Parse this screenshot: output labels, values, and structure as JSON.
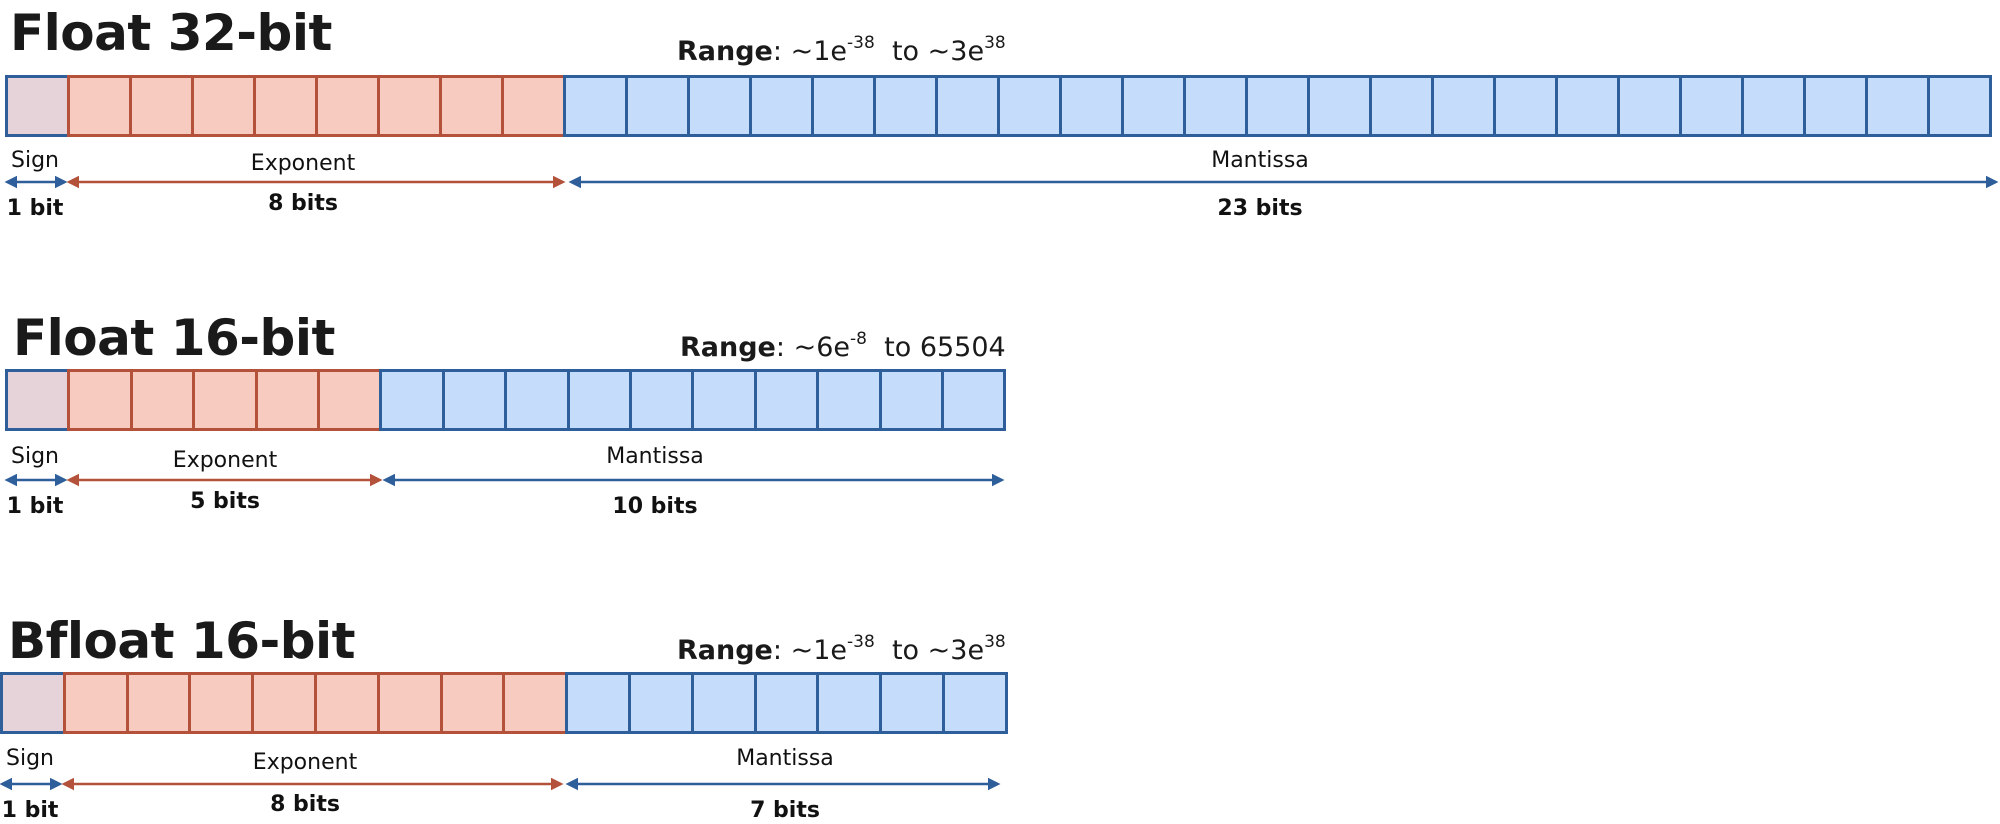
{
  "colors": {
    "sign_fill": "#e6d2d9",
    "exponent_fill": "#f7cbbf",
    "exponent_stroke": "#b3513b",
    "mantissa_fill": "#c5ddfa",
    "blue_stroke": "#2f5f9a"
  },
  "formats": [
    {
      "id": "fp32",
      "title": "Float 32-bit",
      "range": {
        "label": "Range",
        "colon": ":",
        "low_base": "~1e",
        "low_exp": "-38",
        "to": "to",
        "high_base": "~3e",
        "high_exp": "38"
      },
      "sign": {
        "label": "Sign",
        "bits": 1,
        "count_label": "1 bit"
      },
      "exponent": {
        "label": "Exponent",
        "bits": 8,
        "count_label": "8 bits"
      },
      "mantissa": {
        "label": "Mantissa",
        "bits": 23,
        "count_label": "23 bits"
      }
    },
    {
      "id": "fp16",
      "title": "Float 16-bit",
      "range": {
        "label": "Range",
        "colon": ":",
        "low_base": "~6e",
        "low_exp": "-8",
        "to": "to",
        "high_base": "65504",
        "high_exp": ""
      },
      "sign": {
        "label": "Sign",
        "bits": 1,
        "count_label": "1 bit"
      },
      "exponent": {
        "label": "Exponent",
        "bits": 5,
        "count_label": "5 bits"
      },
      "mantissa": {
        "label": "Mantissa",
        "bits": 10,
        "count_label": "10 bits"
      }
    },
    {
      "id": "bf16",
      "title": "Bfloat 16-bit",
      "range": {
        "label": "Range",
        "colon": ":",
        "low_base": "~1e",
        "low_exp": "-38",
        "to": "to",
        "high_base": "~3e",
        "high_exp": "38"
      },
      "sign": {
        "label": "Sign",
        "bits": 1,
        "count_label": "1 bit"
      },
      "exponent": {
        "label": "Exponent",
        "bits": 8,
        "count_label": "8 bits"
      },
      "mantissa": {
        "label": "Mantissa",
        "bits": 7,
        "count_label": "7 bits"
      }
    }
  ]
}
